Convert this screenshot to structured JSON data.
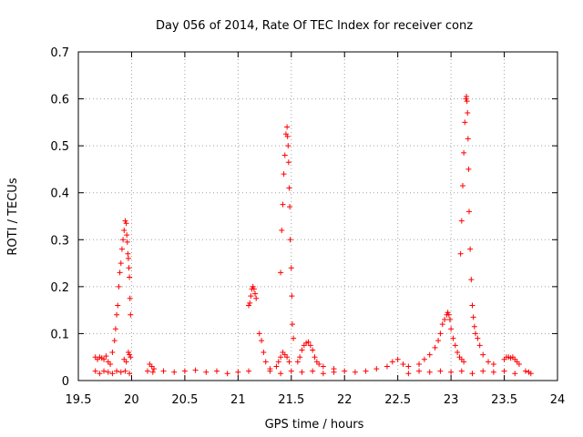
{
  "chart_data": {
    "type": "scatter",
    "title": "Day 056 of 2014, Rate Of TEC Index for receiver conz",
    "xlabel": "GPS time / hours",
    "ylabel": "ROTI / TECUs",
    "xlim": [
      19.5,
      24
    ],
    "ylim": [
      0,
      0.7
    ],
    "x_ticks": [
      19.5,
      20,
      20.5,
      21,
      21.5,
      22,
      22.5,
      23,
      23.5,
      24
    ],
    "x_tick_labels": [
      "19.5",
      "20",
      "20.5",
      "21",
      "21.5",
      "22",
      "22.5",
      "23",
      "23.5",
      "24"
    ],
    "y_ticks": [
      0,
      0.1,
      0.2,
      0.3,
      0.4,
      0.5,
      0.6,
      0.7
    ],
    "y_tick_labels": [
      "0",
      "0.1",
      "0.2",
      "0.3",
      "0.4",
      "0.5",
      "0.6",
      "0.7"
    ],
    "grid": true,
    "marker": "+",
    "series_color": "#ff0000",
    "series": [
      {
        "name": "ROTI",
        "points": [
          [
            19.66,
            0.05
          ],
          [
            19.68,
            0.045
          ],
          [
            19.7,
            0.05
          ],
          [
            19.72,
            0.048
          ],
          [
            19.74,
            0.045
          ],
          [
            19.76,
            0.052
          ],
          [
            19.78,
            0.04
          ],
          [
            19.8,
            0.035
          ],
          [
            19.82,
            0.06
          ],
          [
            19.84,
            0.085
          ],
          [
            19.85,
            0.11
          ],
          [
            19.86,
            0.14
          ],
          [
            19.87,
            0.16
          ],
          [
            19.88,
            0.2
          ],
          [
            19.89,
            0.23
          ],
          [
            19.9,
            0.25
          ],
          [
            19.91,
            0.28
          ],
          [
            19.92,
            0.3
          ],
          [
            19.93,
            0.32
          ],
          [
            19.94,
            0.34
          ],
          [
            19.95,
            0.335
          ],
          [
            19.955,
            0.31
          ],
          [
            19.96,
            0.295
          ],
          [
            19.965,
            0.27
          ],
          [
            19.97,
            0.26
          ],
          [
            19.975,
            0.24
          ],
          [
            19.98,
            0.22
          ],
          [
            19.985,
            0.175
          ],
          [
            19.99,
            0.14
          ],
          [
            19.97,
            0.06
          ],
          [
            19.98,
            0.055
          ],
          [
            19.99,
            0.05
          ],
          [
            19.93,
            0.045
          ],
          [
            19.95,
            0.04
          ],
          [
            19.66,
            0.02
          ],
          [
            19.7,
            0.015
          ],
          [
            19.74,
            0.02
          ],
          [
            19.78,
            0.018
          ],
          [
            19.82,
            0.015
          ],
          [
            19.86,
            0.02
          ],
          [
            19.9,
            0.018
          ],
          [
            19.94,
            0.02
          ],
          [
            19.98,
            0.015
          ],
          [
            20.17,
            0.035
          ],
          [
            20.19,
            0.03
          ],
          [
            20.21,
            0.025
          ],
          [
            20.15,
            0.02
          ],
          [
            20.2,
            0.018
          ],
          [
            20.3,
            0.02
          ],
          [
            20.4,
            0.018
          ],
          [
            20.5,
            0.02
          ],
          [
            20.6,
            0.022
          ],
          [
            20.7,
            0.018
          ],
          [
            20.8,
            0.02
          ],
          [
            20.9,
            0.015
          ],
          [
            21.0,
            0.018
          ],
          [
            21.1,
            0.02
          ],
          [
            21.1,
            0.16
          ],
          [
            21.11,
            0.165
          ],
          [
            21.12,
            0.18
          ],
          [
            21.13,
            0.195
          ],
          [
            21.14,
            0.2
          ],
          [
            21.15,
            0.195
          ],
          [
            21.16,
            0.185
          ],
          [
            21.17,
            0.175
          ],
          [
            21.2,
            0.1
          ],
          [
            21.22,
            0.085
          ],
          [
            21.24,
            0.06
          ],
          [
            21.26,
            0.04
          ],
          [
            21.3,
            0.025
          ],
          [
            21.36,
            0.03
          ],
          [
            21.38,
            0.04
          ],
          [
            21.4,
            0.05
          ],
          [
            21.42,
            0.06
          ],
          [
            21.44,
            0.055
          ],
          [
            21.46,
            0.05
          ],
          [
            21.48,
            0.04
          ],
          [
            21.4,
            0.23
          ],
          [
            21.41,
            0.32
          ],
          [
            21.42,
            0.375
          ],
          [
            21.43,
            0.44
          ],
          [
            21.44,
            0.48
          ],
          [
            21.45,
            0.525
          ],
          [
            21.46,
            0.54
          ],
          [
            21.465,
            0.52
          ],
          [
            21.47,
            0.5
          ],
          [
            21.475,
            0.465
          ],
          [
            21.48,
            0.41
          ],
          [
            21.485,
            0.37
          ],
          [
            21.49,
            0.3
          ],
          [
            21.5,
            0.24
          ],
          [
            21.505,
            0.18
          ],
          [
            21.51,
            0.12
          ],
          [
            21.52,
            0.09
          ],
          [
            21.56,
            0.04
          ],
          [
            21.58,
            0.05
          ],
          [
            21.6,
            0.065
          ],
          [
            21.62,
            0.075
          ],
          [
            21.64,
            0.08
          ],
          [
            21.66,
            0.082
          ],
          [
            21.68,
            0.075
          ],
          [
            21.7,
            0.065
          ],
          [
            21.72,
            0.05
          ],
          [
            21.74,
            0.04
          ],
          [
            21.76,
            0.035
          ],
          [
            21.8,
            0.03
          ],
          [
            21.9,
            0.025
          ],
          [
            21.3,
            0.02
          ],
          [
            21.4,
            0.015
          ],
          [
            21.5,
            0.02
          ],
          [
            21.6,
            0.018
          ],
          [
            21.7,
            0.02
          ],
          [
            21.8,
            0.015
          ],
          [
            21.9,
            0.018
          ],
          [
            22.0,
            0.02
          ],
          [
            22.1,
            0.018
          ],
          [
            22.2,
            0.02
          ],
          [
            22.3,
            0.025
          ],
          [
            22.4,
            0.03
          ],
          [
            22.45,
            0.04
          ],
          [
            22.5,
            0.045
          ],
          [
            22.55,
            0.035
          ],
          [
            22.6,
            0.03
          ],
          [
            22.7,
            0.035
          ],
          [
            22.75,
            0.045
          ],
          [
            22.8,
            0.055
          ],
          [
            22.85,
            0.07
          ],
          [
            22.88,
            0.085
          ],
          [
            22.9,
            0.1
          ],
          [
            22.92,
            0.12
          ],
          [
            22.94,
            0.13
          ],
          [
            22.96,
            0.14
          ],
          [
            22.97,
            0.145
          ],
          [
            22.98,
            0.14
          ],
          [
            22.99,
            0.13
          ],
          [
            23.0,
            0.11
          ],
          [
            23.02,
            0.09
          ],
          [
            23.04,
            0.075
          ],
          [
            23.06,
            0.06
          ],
          [
            23.08,
            0.05
          ],
          [
            23.1,
            0.045
          ],
          [
            23.12,
            0.04
          ],
          [
            23.09,
            0.27
          ],
          [
            23.1,
            0.34
          ],
          [
            23.11,
            0.415
          ],
          [
            23.12,
            0.485
          ],
          [
            23.13,
            0.55
          ],
          [
            23.14,
            0.6
          ],
          [
            23.145,
            0.605
          ],
          [
            23.15,
            0.595
          ],
          [
            23.155,
            0.57
          ],
          [
            23.16,
            0.515
          ],
          [
            23.165,
            0.45
          ],
          [
            23.17,
            0.36
          ],
          [
            23.18,
            0.28
          ],
          [
            23.19,
            0.215
          ],
          [
            23.2,
            0.16
          ],
          [
            23.21,
            0.135
          ],
          [
            23.22,
            0.115
          ],
          [
            23.23,
            0.1
          ],
          [
            23.25,
            0.09
          ],
          [
            23.27,
            0.075
          ],
          [
            23.3,
            0.055
          ],
          [
            23.35,
            0.04
          ],
          [
            23.4,
            0.035
          ],
          [
            23.5,
            0.045
          ],
          [
            23.52,
            0.05
          ],
          [
            23.54,
            0.05
          ],
          [
            23.56,
            0.048
          ],
          [
            23.58,
            0.05
          ],
          [
            23.6,
            0.045
          ],
          [
            23.62,
            0.04
          ],
          [
            23.64,
            0.035
          ],
          [
            22.6,
            0.015
          ],
          [
            22.7,
            0.02
          ],
          [
            22.8,
            0.018
          ],
          [
            22.9,
            0.02
          ],
          [
            23.0,
            0.018
          ],
          [
            23.1,
            0.02
          ],
          [
            23.2,
            0.015
          ],
          [
            23.3,
            0.02
          ],
          [
            23.4,
            0.018
          ],
          [
            23.5,
            0.02
          ],
          [
            23.6,
            0.015
          ],
          [
            23.7,
            0.02
          ],
          [
            23.73,
            0.018
          ],
          [
            23.75,
            0.015
          ]
        ]
      }
    ]
  }
}
